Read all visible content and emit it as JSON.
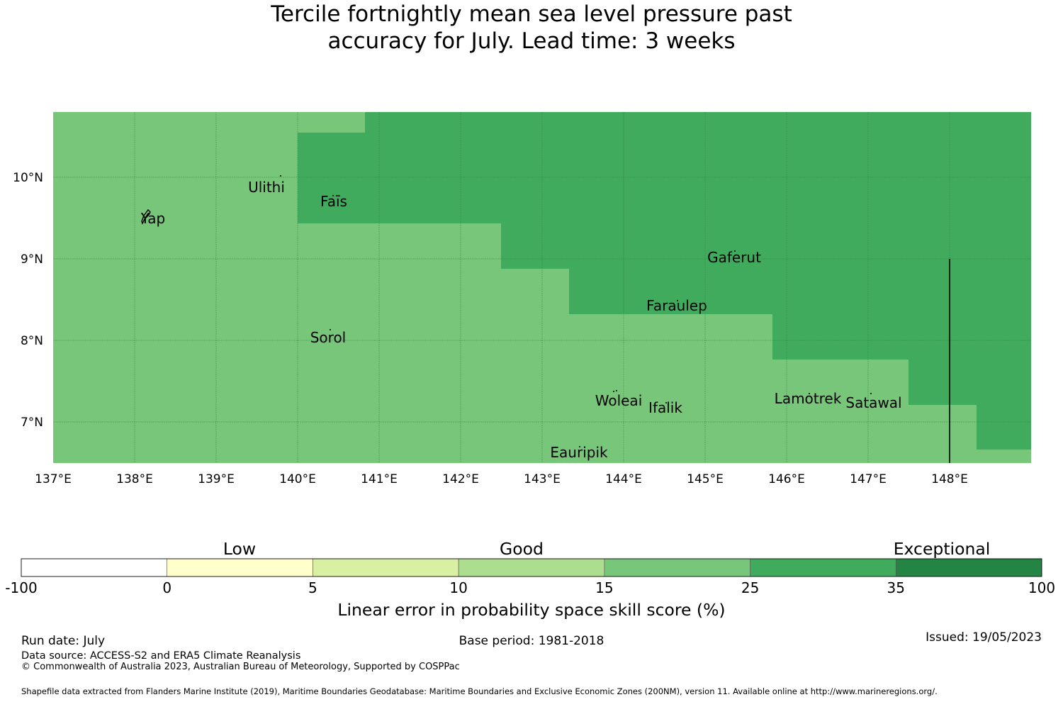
{
  "title": {
    "line1": "Tercile fortnightly mean sea level pressure past",
    "line2": "accuracy for July. Lead time: 3 weeks"
  },
  "map": {
    "lon_labels": [
      "137°E",
      "138°E",
      "139°E",
      "140°E",
      "141°E",
      "142°E",
      "143°E",
      "144°E",
      "145°E",
      "146°E",
      "147°E",
      "148°E"
    ],
    "lat_labels": [
      "10°N",
      "9°N",
      "8°N",
      "7°N"
    ],
    "lon_range": [
      137,
      149
    ],
    "lat_range": [
      6.5,
      10.8
    ],
    "colors": {
      "good_15_25": "#78c679",
      "good_25_35": "#41ab5d"
    },
    "regions_25_35": [
      "140.0°E–149°E, 9.4°N–10.5°N",
      "140.8°E–149°E, 10.5°N–10.8°N",
      "142.5°E–149°E, 8.9°N–9.4°N",
      "143.3°E–149°E, 8.3°N–8.9°N",
      "145.8°E–149°E, 7.8°N–8.3°N",
      "147.5°E–149°E, 7.2°N–7.8°N",
      "148.3°E–149°E, 6.7°N–7.2°N"
    ],
    "places": [
      {
        "name": "Yap",
        "lon": 138.1,
        "lat": 9.5
      },
      {
        "name": "Ulithi",
        "lon": 139.7,
        "lat": 9.8
      },
      {
        "name": "Faīs",
        "lon": 140.5,
        "lat": 9.7
      },
      {
        "name": "Gaferut",
        "lon": 145.4,
        "lat": 9.0
      },
      {
        "name": "Faraulep",
        "lon": 144.7,
        "lat": 8.4
      },
      {
        "name": "Sorol",
        "lon": 140.4,
        "lat": 8.0
      },
      {
        "name": "Woleai",
        "lon": 143.9,
        "lat": 7.2
      },
      {
        "name": "Ifalik",
        "lon": 144.5,
        "lat": 7.1
      },
      {
        "name": "Lamotrek",
        "lon": 146.3,
        "lat": 7.3
      },
      {
        "name": "Satawal",
        "lon": 147.1,
        "lat": 7.2
      },
      {
        "name": "Eauripik",
        "lon": 143.4,
        "lat": 6.6
      }
    ],
    "boundary_line_lon": 148,
    "boundary_line_lat": [
      6.5,
      9.0
    ]
  },
  "legend": {
    "category_labels": [
      "Low",
      "Good",
      "Exceptional"
    ],
    "ticks": [
      "-100",
      "0",
      "5",
      "10",
      "15",
      "25",
      "35",
      "100"
    ],
    "colors": [
      "#ffffff",
      "#ffffcc",
      "#d9f0a3",
      "#addd8e",
      "#78c679",
      "#41ab5d",
      "#238443"
    ],
    "axis_label": "Linear error in probability space skill score (%)"
  },
  "footer": {
    "run_date": "Run date: July",
    "base_period": "Base period: 1981-2018",
    "issued": "Issued: 19/05/2023",
    "data_source": "Data source: ACCESS-S2 and ERA5 Climate Reanalysis",
    "copyright": "© Commonwealth of Australia 2023, Australian Bureau of Meteorology, Supported by COSPPac",
    "shapefile": "Shapefile data extracted from Flanders Marine Institute (2019), Maritime Boundaries Geodatabase: Maritime Boundaries and Exclusive Economic Zones (200NM), version 11. Available online at http://www.marineregions.org/."
  }
}
